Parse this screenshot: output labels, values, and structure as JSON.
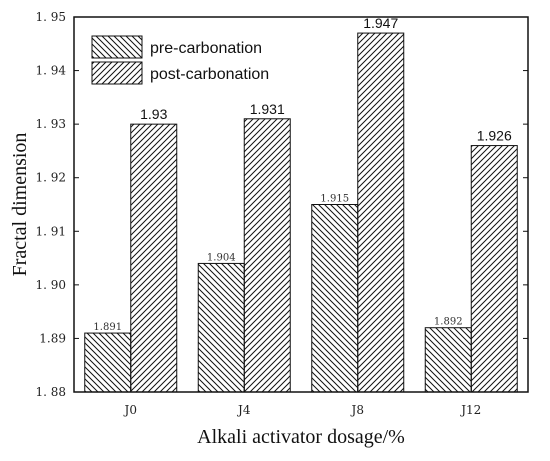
{
  "chart_data": {
    "type": "bar",
    "categories": [
      "J0",
      "J4",
      "J8",
      "J12"
    ],
    "series": [
      {
        "name": "pre-carbonation",
        "values": [
          1.891,
          1.904,
          1.915,
          1.892
        ],
        "labels": [
          "1.891",
          "1.904",
          "1.915",
          "1.892"
        ],
        "hatch": "back-diagonal"
      },
      {
        "name": "post-carbonation",
        "values": [
          1.93,
          1.931,
          1.947,
          1.926
        ],
        "labels": [
          "1.93",
          "1.931",
          "1.947",
          "1.926"
        ],
        "hatch": "forward-diagonal"
      }
    ],
    "xlabel": "Alkali activator dosage/%",
    "ylabel": "Fractal dimension",
    "ylim": [
      1.88,
      1.95
    ],
    "yticks": [
      "1. 88",
      "1.89",
      "1. 90",
      "1. 91",
      "1. 92",
      "1. 93",
      "1. 94",
      "1. 95"
    ],
    "legend_position": "top-left",
    "grid": false
  }
}
